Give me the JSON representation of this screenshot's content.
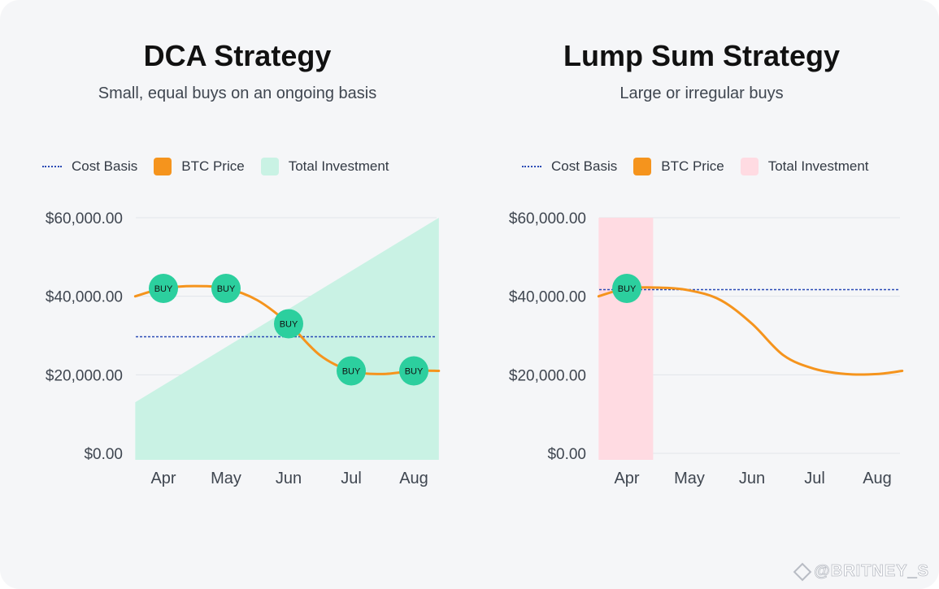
{
  "colors": {
    "cost_basis": "#2b4bb5",
    "btc_price": "#f5941d",
    "dca_investment": "#c9f2e4",
    "lump_investment": "#ffdbe2",
    "buy_marker": "#2ccf9e",
    "grid": "#e2e5ea",
    "axis_text": "#3f4650"
  },
  "watermark": "@BRITNEY_S",
  "chart_data": [
    {
      "id": "dca",
      "type": "line",
      "title": "DCA Strategy",
      "subtitle": "Small, equal buys on an ongoing basis",
      "legend": [
        "Cost Basis",
        "BTC Price",
        "Total Investment"
      ],
      "categories": [
        "Apr",
        "May",
        "Jun",
        "Jul",
        "Aug"
      ],
      "yticks": [
        "$60,000.00",
        "$40,000.00",
        "$20,000.00",
        "$0.00"
      ],
      "ylim": [
        0,
        60000
      ],
      "btc_price": {
        "x": [
          -0.45,
          0,
          0.5,
          1,
          1.5,
          2,
          2.5,
          3,
          3.5,
          4,
          4.4
        ],
        "y": [
          40000,
          42000,
          42600,
          42000,
          39000,
          33000,
          25000,
          21000,
          20200,
          21000,
          21000
        ]
      },
      "cost_basis": 29700,
      "total_investment": {
        "x": [
          -0.45,
          4.4
        ],
        "y": [
          13000,
          60000
        ]
      },
      "buys": [
        {
          "x": 0,
          "y": 42000,
          "label": "BUY"
        },
        {
          "x": 1,
          "y": 42000,
          "label": "BUY"
        },
        {
          "x": 2,
          "y": 33000,
          "label": "BUY"
        },
        {
          "x": 3,
          "y": 21000,
          "label": "BUY"
        },
        {
          "x": 4,
          "y": 21000,
          "label": "BUY"
        }
      ]
    },
    {
      "id": "lump",
      "type": "line",
      "title": "Lump Sum Strategy",
      "subtitle": "Large or irregular buys",
      "legend": [
        "Cost Basis",
        "BTC Price",
        "Total Investment"
      ],
      "categories": [
        "Apr",
        "May",
        "Jun",
        "Jul",
        "Aug"
      ],
      "yticks": [
        "$60,000.00",
        "$40,000.00",
        "$20,000.00",
        "$0.00"
      ],
      "ylim": [
        0,
        60000
      ],
      "btc_price": {
        "x": [
          -0.45,
          0,
          0.5,
          1,
          1.5,
          2,
          2.5,
          3,
          3.5,
          4,
          4.4
        ],
        "y": [
          40000,
          42000,
          42200,
          41500,
          39000,
          33000,
          25000,
          21500,
          20200,
          20200,
          21000
        ]
      },
      "cost_basis": 41700,
      "total_investment": {
        "x": [
          -0.45,
          0.42
        ],
        "y": [
          60000,
          60000
        ]
      },
      "buys": [
        {
          "x": 0,
          "y": 42000,
          "label": "BUY"
        }
      ]
    }
  ]
}
